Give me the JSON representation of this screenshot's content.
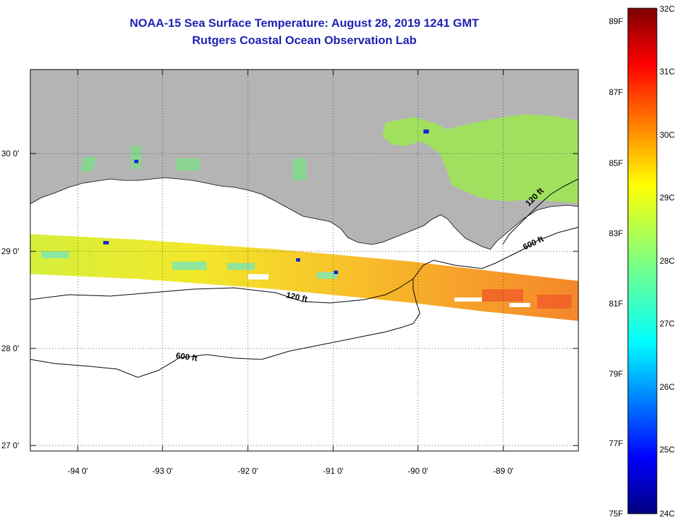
{
  "title": {
    "line1": "NOAA-15 Sea Surface Temperature:  August 28, 2019 1241 GMT",
    "line2": "Rutgers Coastal Ocean Observation Lab"
  },
  "map": {
    "region": "Northern Gulf of Mexico (Louisiana coast)",
    "lon_labels": [
      "-94 0'",
      "-93 0'",
      "-92 0'",
      "-91 0'",
      "-90 0'",
      "-89 0'"
    ],
    "lat_labels": [
      "30 0'",
      "29 0'",
      "28 0'",
      "27 0'"
    ],
    "lon_range": [
      -94.55,
      -88.2
    ],
    "lat_range": [
      26.97,
      30.85
    ],
    "isobath_labels": [
      "120 ft",
      "600 ft",
      "120 ft",
      "600 ft"
    ],
    "colors": {
      "land": "#b4b4b4",
      "title": "#1f1fb4"
    }
  },
  "colorbar": {
    "fahrenheit_labels": [
      "89F",
      "87F",
      "85F",
      "83F",
      "81F",
      "79F",
      "77F",
      "75F"
    ],
    "celsius_labels": [
      "32C",
      "31C",
      "30C",
      "29C",
      "28C",
      "27C",
      "26C",
      "25C",
      "24C"
    ],
    "range_c": [
      24,
      32
    ]
  }
}
